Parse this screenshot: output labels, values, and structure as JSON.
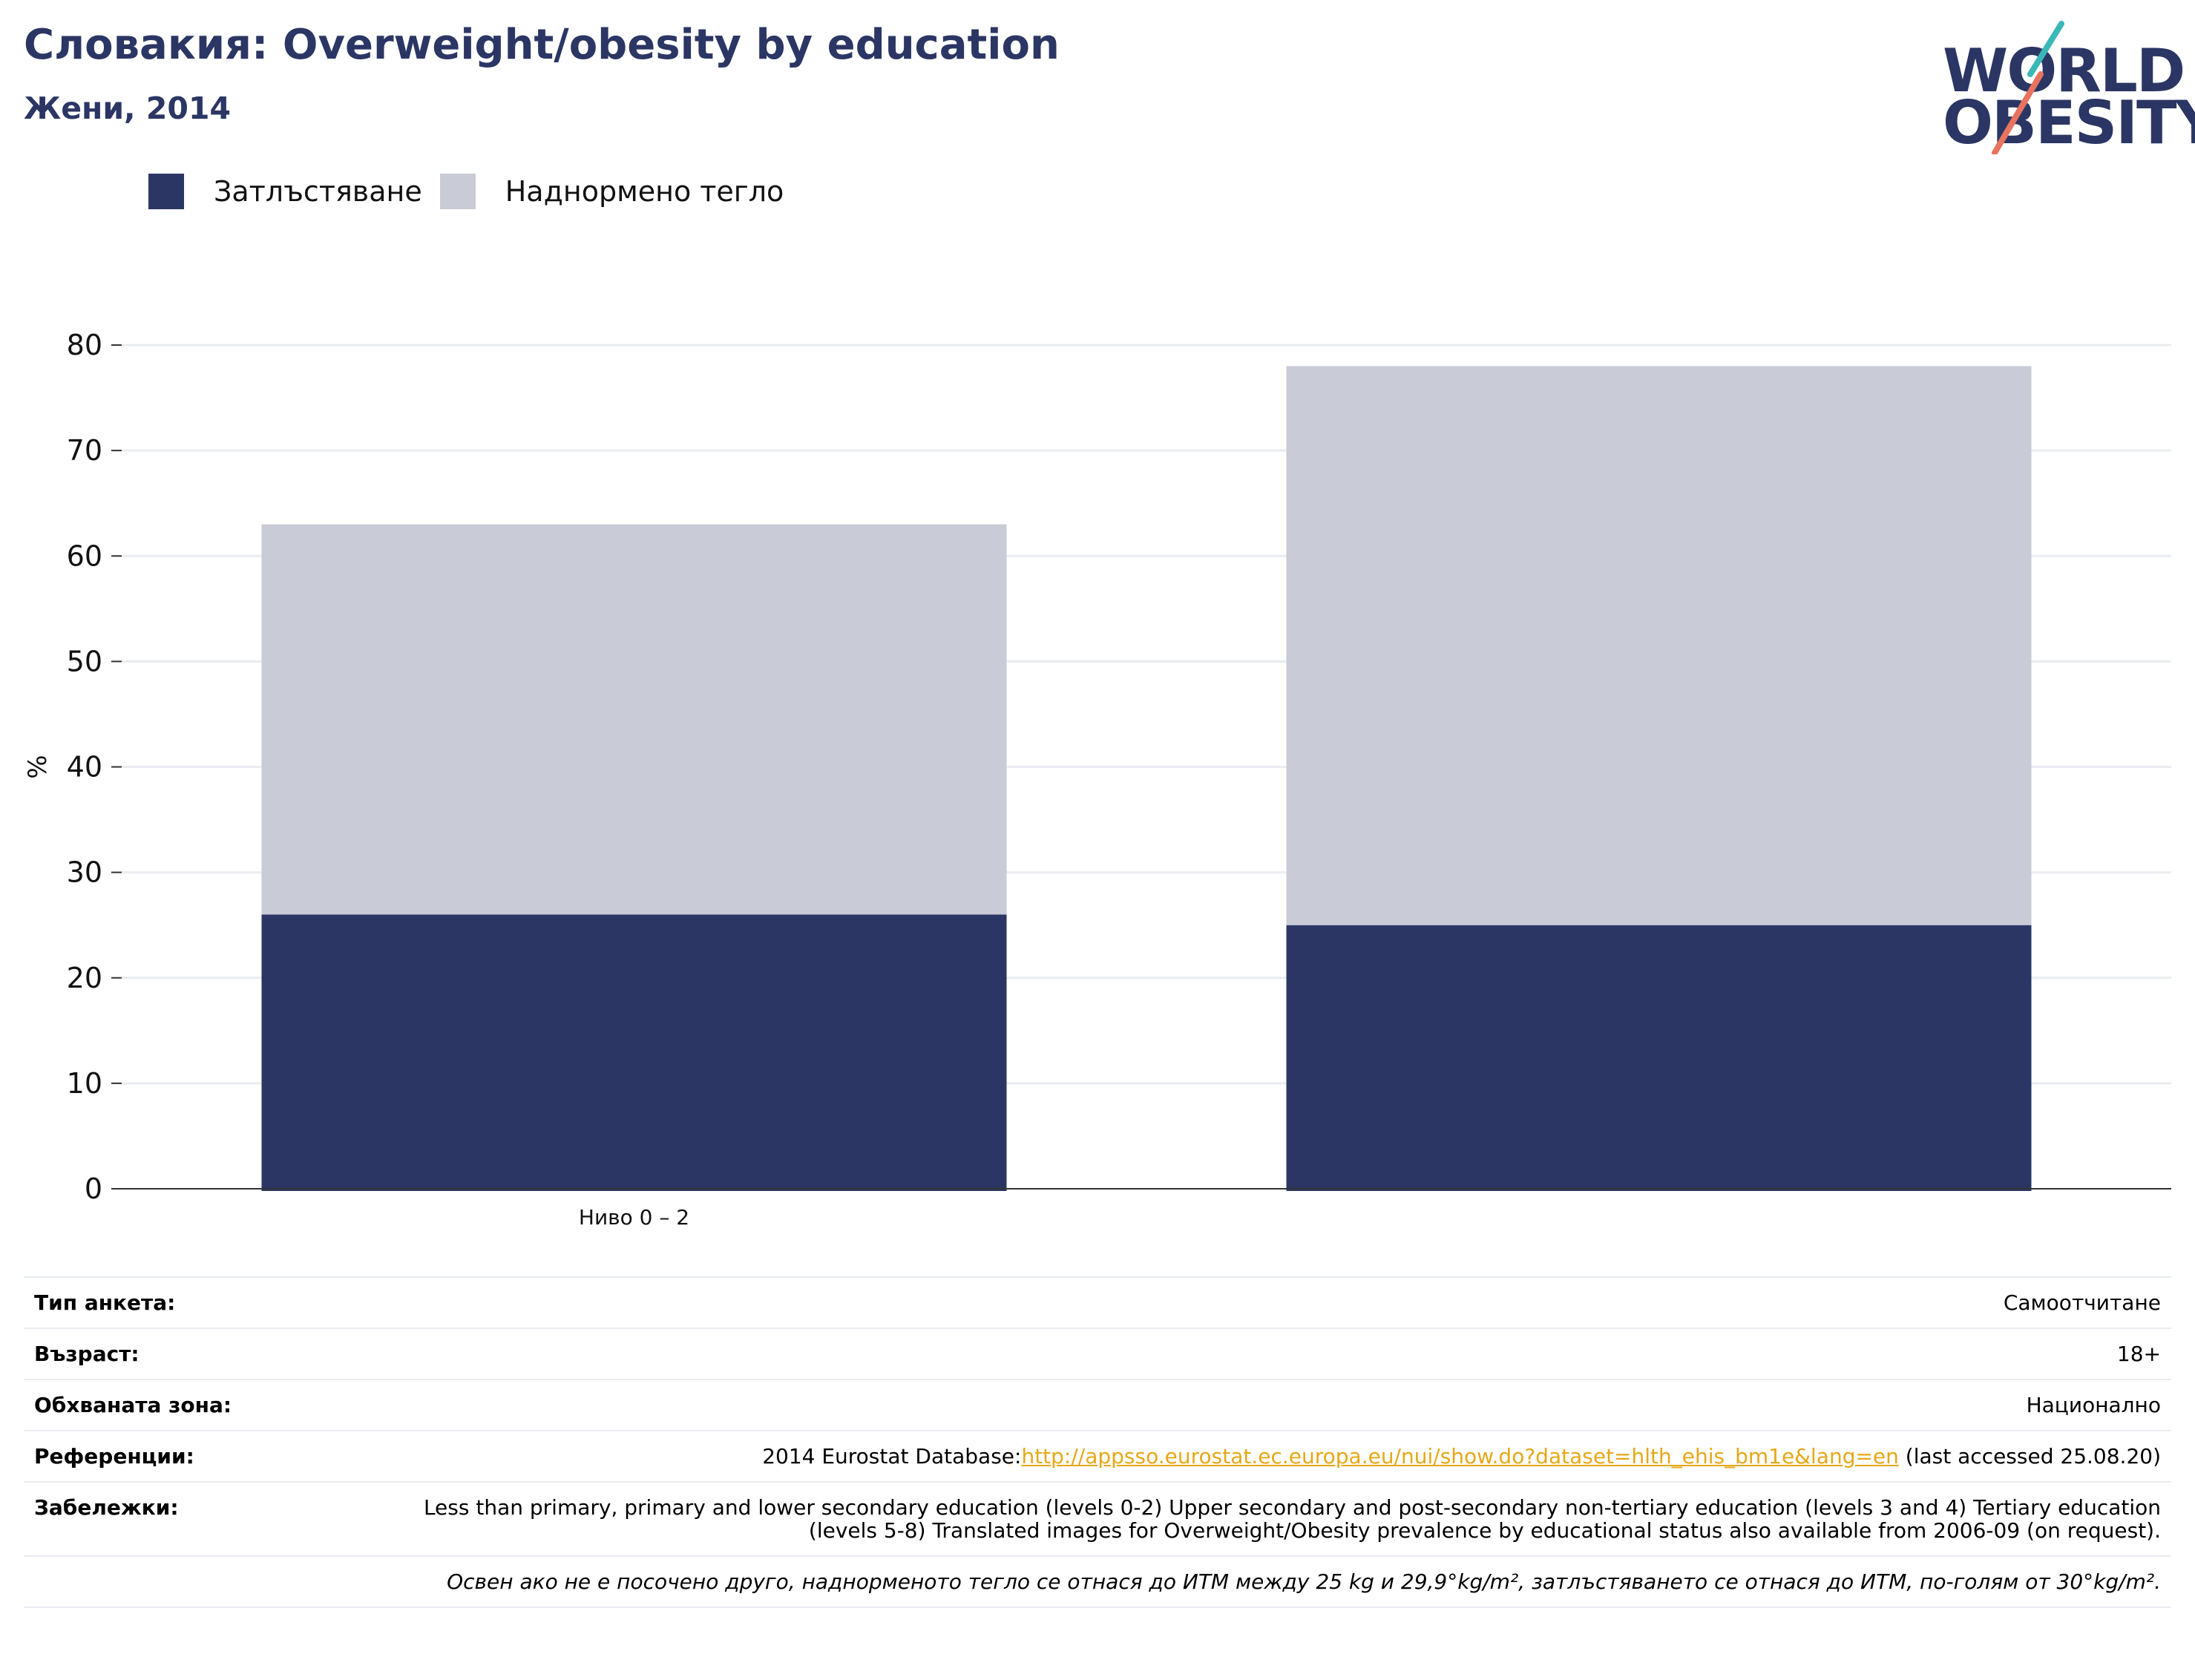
{
  "header": {
    "title": "Словакия: Overweight/obesity by education",
    "subtitle": "Жени, 2014"
  },
  "logo": {
    "line1": "WORLD",
    "line2": "OBESITY",
    "text": "WORLD OBESITY",
    "colors": {
      "text": "#2b3664",
      "teal": "#3ab7b7",
      "coral": "#e8735e"
    }
  },
  "legend": {
    "items": [
      {
        "label": "Затлъстяване",
        "color": "#2b3664"
      },
      {
        "label": "Наднормено тегло",
        "color": "#c9cbd7"
      }
    ]
  },
  "chart_data": {
    "type": "bar",
    "stacked": true,
    "categories": [
      "Ниво 0 – 2",
      ""
    ],
    "series": [
      {
        "name": "Затлъстяване",
        "values": [
          26,
          25
        ],
        "color": "#2b3664"
      },
      {
        "name": "Наднормено тегло",
        "values": [
          37,
          53
        ],
        "color": "#c9cbd7"
      }
    ],
    "ylabel": "%",
    "ylim": [
      0,
      80
    ],
    "yticks": [
      0,
      10,
      20,
      30,
      40,
      50,
      60,
      70,
      80
    ],
    "grid": true,
    "legend_position": "top-left"
  },
  "info": {
    "survey_type": {
      "label": "Тип анкета:",
      "value": "Самоотчитане"
    },
    "age": {
      "label": "Възраст:",
      "value": "18+"
    },
    "area": {
      "label": "Обхваната зона:",
      "value": "Национално"
    },
    "references": {
      "label": "Референции:",
      "prefix": "2014 Eurostat Database:",
      "link": "http://appsso.eurostat.ec.europa.eu/nui/show.do?dataset=hlth_ehis_bm1e&lang=en",
      "suffix": " (last accessed 25.08.20)"
    },
    "notes": {
      "label": "Забележки:",
      "value": "Less than primary, primary and lower secondary education (levels 0-2) Upper secondary and post-secondary non-tertiary education (levels 3 and 4) Tertiary education (levels 5-8) Translated images for Overweight/Obesity prevalence by educational status also available from 2006-09 (on request)."
    },
    "footnote": "Освен ако не е посочено друго, наднорменото тегло се отнася до ИТМ между 25 kg и 29,9°kg/m², затлъстяването се отнася до ИТМ, по-голям от 30°kg/m²."
  }
}
